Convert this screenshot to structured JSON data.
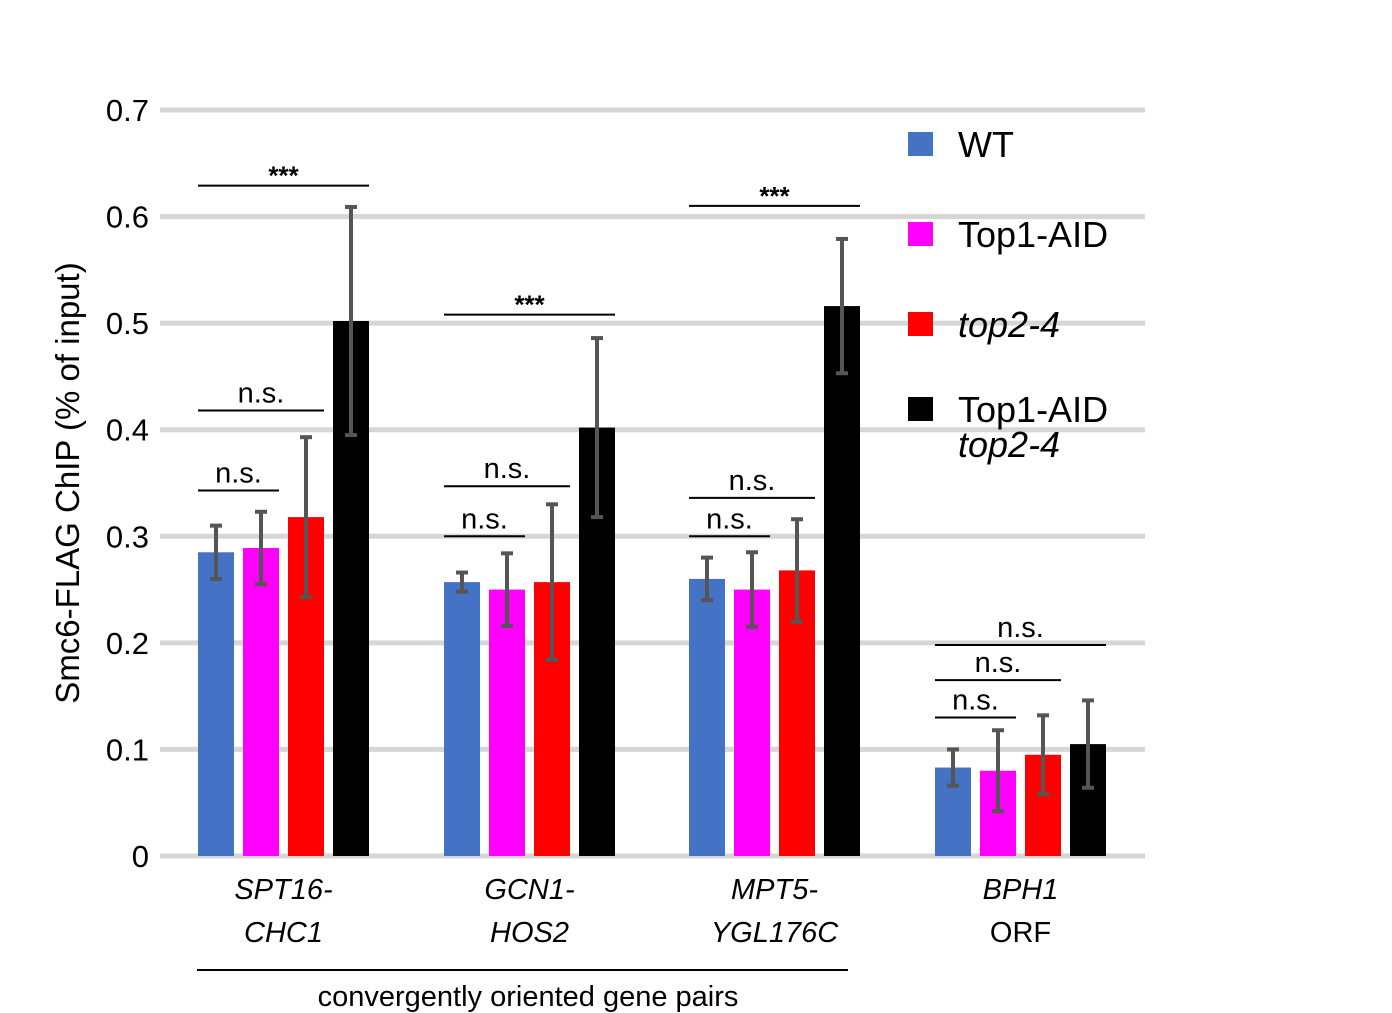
{
  "chart_data": {
    "type": "bar",
    "ylabel": "Smc6-FLAG ChIP (% of input)",
    "ylim": [
      0,
      0.7
    ],
    "yticks": [
      "0",
      "0.1",
      "0.2",
      "0.3",
      "0.4",
      "0.5",
      "0.6",
      "0.7"
    ],
    "grid": true,
    "legend_position": "right",
    "categories": [
      {
        "line1": "SPT16-",
        "line2": "CHC1",
        "line1_italic": true,
        "line2_italic": true
      },
      {
        "line1": "GCN1-",
        "line2": "HOS2",
        "line1_italic": true,
        "line2_italic": true
      },
      {
        "line1": "MPT5-",
        "line2": "YGL176C",
        "line1_italic": true,
        "line2_italic": true
      },
      {
        "line1": "BPH1",
        "line2": "ORF",
        "line1_italic": true,
        "line2_italic": false
      }
    ],
    "group_label": "convergently oriented gene pairs",
    "series": [
      {
        "name": "WT",
        "name_line2": "",
        "italic": false,
        "color": "#4472c4",
        "values": [
          0.285,
          0.257,
          0.26,
          0.083
        ],
        "errors": [
          0.025,
          0.009,
          0.02,
          0.017
        ]
      },
      {
        "name": "Top1-AID",
        "name_line2": "",
        "italic": false,
        "color": "#ff00ff",
        "values": [
          0.289,
          0.25,
          0.25,
          0.08
        ],
        "errors": [
          0.034,
          0.034,
          0.035,
          0.038
        ]
      },
      {
        "name": "top2-4",
        "name_line2": "",
        "italic": true,
        "color": "#ff0000",
        "values": [
          0.318,
          0.257,
          0.268,
          0.095
        ],
        "errors": [
          0.075,
          0.073,
          0.048,
          0.037
        ]
      },
      {
        "name": "Top1-AID",
        "name_line2": "top2-4",
        "italic": false,
        "color": "#000000",
        "values": [
          0.502,
          0.402,
          0.516,
          0.105
        ],
        "errors": [
          0.107,
          0.084,
          0.063,
          0.041
        ]
      }
    ],
    "significance": [
      {
        "group": 0,
        "from": 0,
        "to": 1,
        "label": "n.s.",
        "y": 0.343
      },
      {
        "group": 0,
        "from": 0,
        "to": 2,
        "label": "n.s.",
        "y": 0.418
      },
      {
        "group": 0,
        "from": 0,
        "to": 3,
        "label": "***",
        "y": 0.629
      },
      {
        "group": 1,
        "from": 0,
        "to": 1,
        "label": "n.s.",
        "y": 0.3
      },
      {
        "group": 1,
        "from": 0,
        "to": 2,
        "label": "n.s.",
        "y": 0.347
      },
      {
        "group": 1,
        "from": 0,
        "to": 3,
        "label": "***",
        "y": 0.508
      },
      {
        "group": 2,
        "from": 0,
        "to": 1,
        "label": "n.s.",
        "y": 0.3
      },
      {
        "group": 2,
        "from": 0,
        "to": 2,
        "label": "n.s.",
        "y": 0.336
      },
      {
        "group": 2,
        "from": 0,
        "to": 3,
        "label": "***",
        "y": 0.61
      },
      {
        "group": 3,
        "from": 0,
        "to": 1,
        "label": "n.s.",
        "y": 0.13
      },
      {
        "group": 3,
        "from": 0,
        "to": 2,
        "label": "n.s.",
        "y": 0.165
      },
      {
        "group": 3,
        "from": 0,
        "to": 3,
        "label": "n.s.",
        "y": 0.198
      }
    ]
  }
}
